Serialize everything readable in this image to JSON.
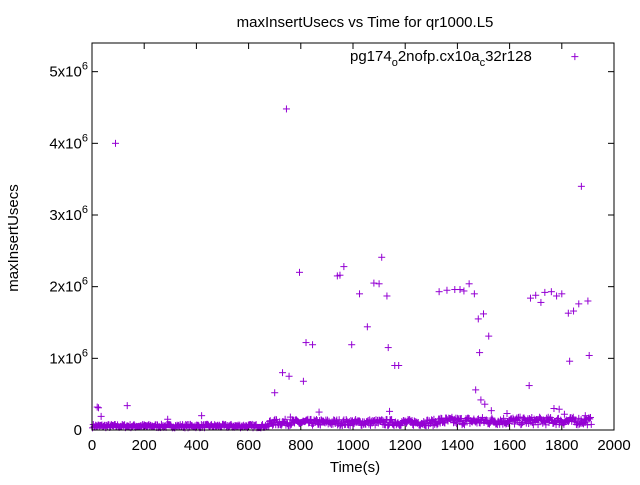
{
  "chart_data": {
    "type": "scatter",
    "title": "maxInsertUsecs vs Time for qr1000.L5",
    "xlabel": "Time(s)",
    "ylabel": "maxInsertUsecs",
    "xlim": [
      0,
      2000
    ],
    "ylim": [
      0,
      5400000
    ],
    "x_ticks": [
      0,
      200,
      400,
      600,
      800,
      1000,
      1200,
      1400,
      1600,
      1800,
      2000
    ],
    "y_ticks": [
      {
        "value": 0,
        "mantissa": "0",
        "exp": ""
      },
      {
        "value": 1000000,
        "mantissa": "1x10",
        "exp": "6"
      },
      {
        "value": 2000000,
        "mantissa": "2x10",
        "exp": "6"
      },
      {
        "value": 3000000,
        "mantissa": "3x10",
        "exp": "6"
      },
      {
        "value": 4000000,
        "mantissa": "4x10",
        "exp": "6"
      },
      {
        "value": 5000000,
        "mantissa": "5x10",
        "exp": "6"
      }
    ],
    "legend": {
      "position": "top-right",
      "parts": [
        {
          "text": "pg174",
          "sub": false
        },
        {
          "text": "o",
          "sub": true
        },
        {
          "text": "2nofp.cx10a",
          "sub": false
        },
        {
          "text": "c",
          "sub": true
        },
        {
          "text": "32r128",
          "sub": false
        }
      ]
    },
    "series": [
      {
        "color": "#9400d3",
        "marker": "plus",
        "outliers": [
          [
            20,
            320000
          ],
          [
            25,
            310000
          ],
          [
            35,
            190000
          ],
          [
            90,
            4000000
          ],
          [
            135,
            340000
          ],
          [
            290,
            150000
          ],
          [
            420,
            200000
          ],
          [
            700,
            520000
          ],
          [
            745,
            4480000
          ],
          [
            730,
            800000
          ],
          [
            755,
            750000
          ],
          [
            760,
            180000
          ],
          [
            795,
            2200000
          ],
          [
            810,
            680000
          ],
          [
            820,
            1220000
          ],
          [
            845,
            1190000
          ],
          [
            870,
            250000
          ],
          [
            940,
            2150000
          ],
          [
            950,
            2160000
          ],
          [
            965,
            2280000
          ],
          [
            995,
            1190000
          ],
          [
            1025,
            1900000
          ],
          [
            1055,
            1440000
          ],
          [
            1080,
            2050000
          ],
          [
            1100,
            2040000
          ],
          [
            1110,
            2410000
          ],
          [
            1130,
            1870000
          ],
          [
            1135,
            1150000
          ],
          [
            1160,
            900000
          ],
          [
            1175,
            900000
          ],
          [
            1140,
            260000
          ],
          [
            1330,
            1930000
          ],
          [
            1360,
            1950000
          ],
          [
            1390,
            1960000
          ],
          [
            1410,
            1960000
          ],
          [
            1425,
            1940000
          ],
          [
            1445,
            2040000
          ],
          [
            1465,
            1900000
          ],
          [
            1470,
            560000
          ],
          [
            1480,
            1550000
          ],
          [
            1485,
            1080000
          ],
          [
            1490,
            420000
          ],
          [
            1500,
            1620000
          ],
          [
            1505,
            360000
          ],
          [
            1520,
            1310000
          ],
          [
            1530,
            270000
          ],
          [
            1590,
            230000
          ],
          [
            1675,
            620000
          ],
          [
            1680,
            1840000
          ],
          [
            1700,
            1880000
          ],
          [
            1720,
            1780000
          ],
          [
            1735,
            1920000
          ],
          [
            1760,
            1930000
          ],
          [
            1770,
            300000
          ],
          [
            1780,
            1870000
          ],
          [
            1790,
            290000
          ],
          [
            1800,
            1900000
          ],
          [
            1810,
            220000
          ],
          [
            1825,
            1630000
          ],
          [
            1830,
            960000
          ],
          [
            1845,
            1660000
          ],
          [
            1850,
            5210000
          ],
          [
            1865,
            1760000
          ],
          [
            1875,
            3400000
          ],
          [
            1900,
            1800000
          ],
          [
            1905,
            1040000
          ],
          [
            1890,
            200000
          ]
        ]
      }
    ]
  }
}
